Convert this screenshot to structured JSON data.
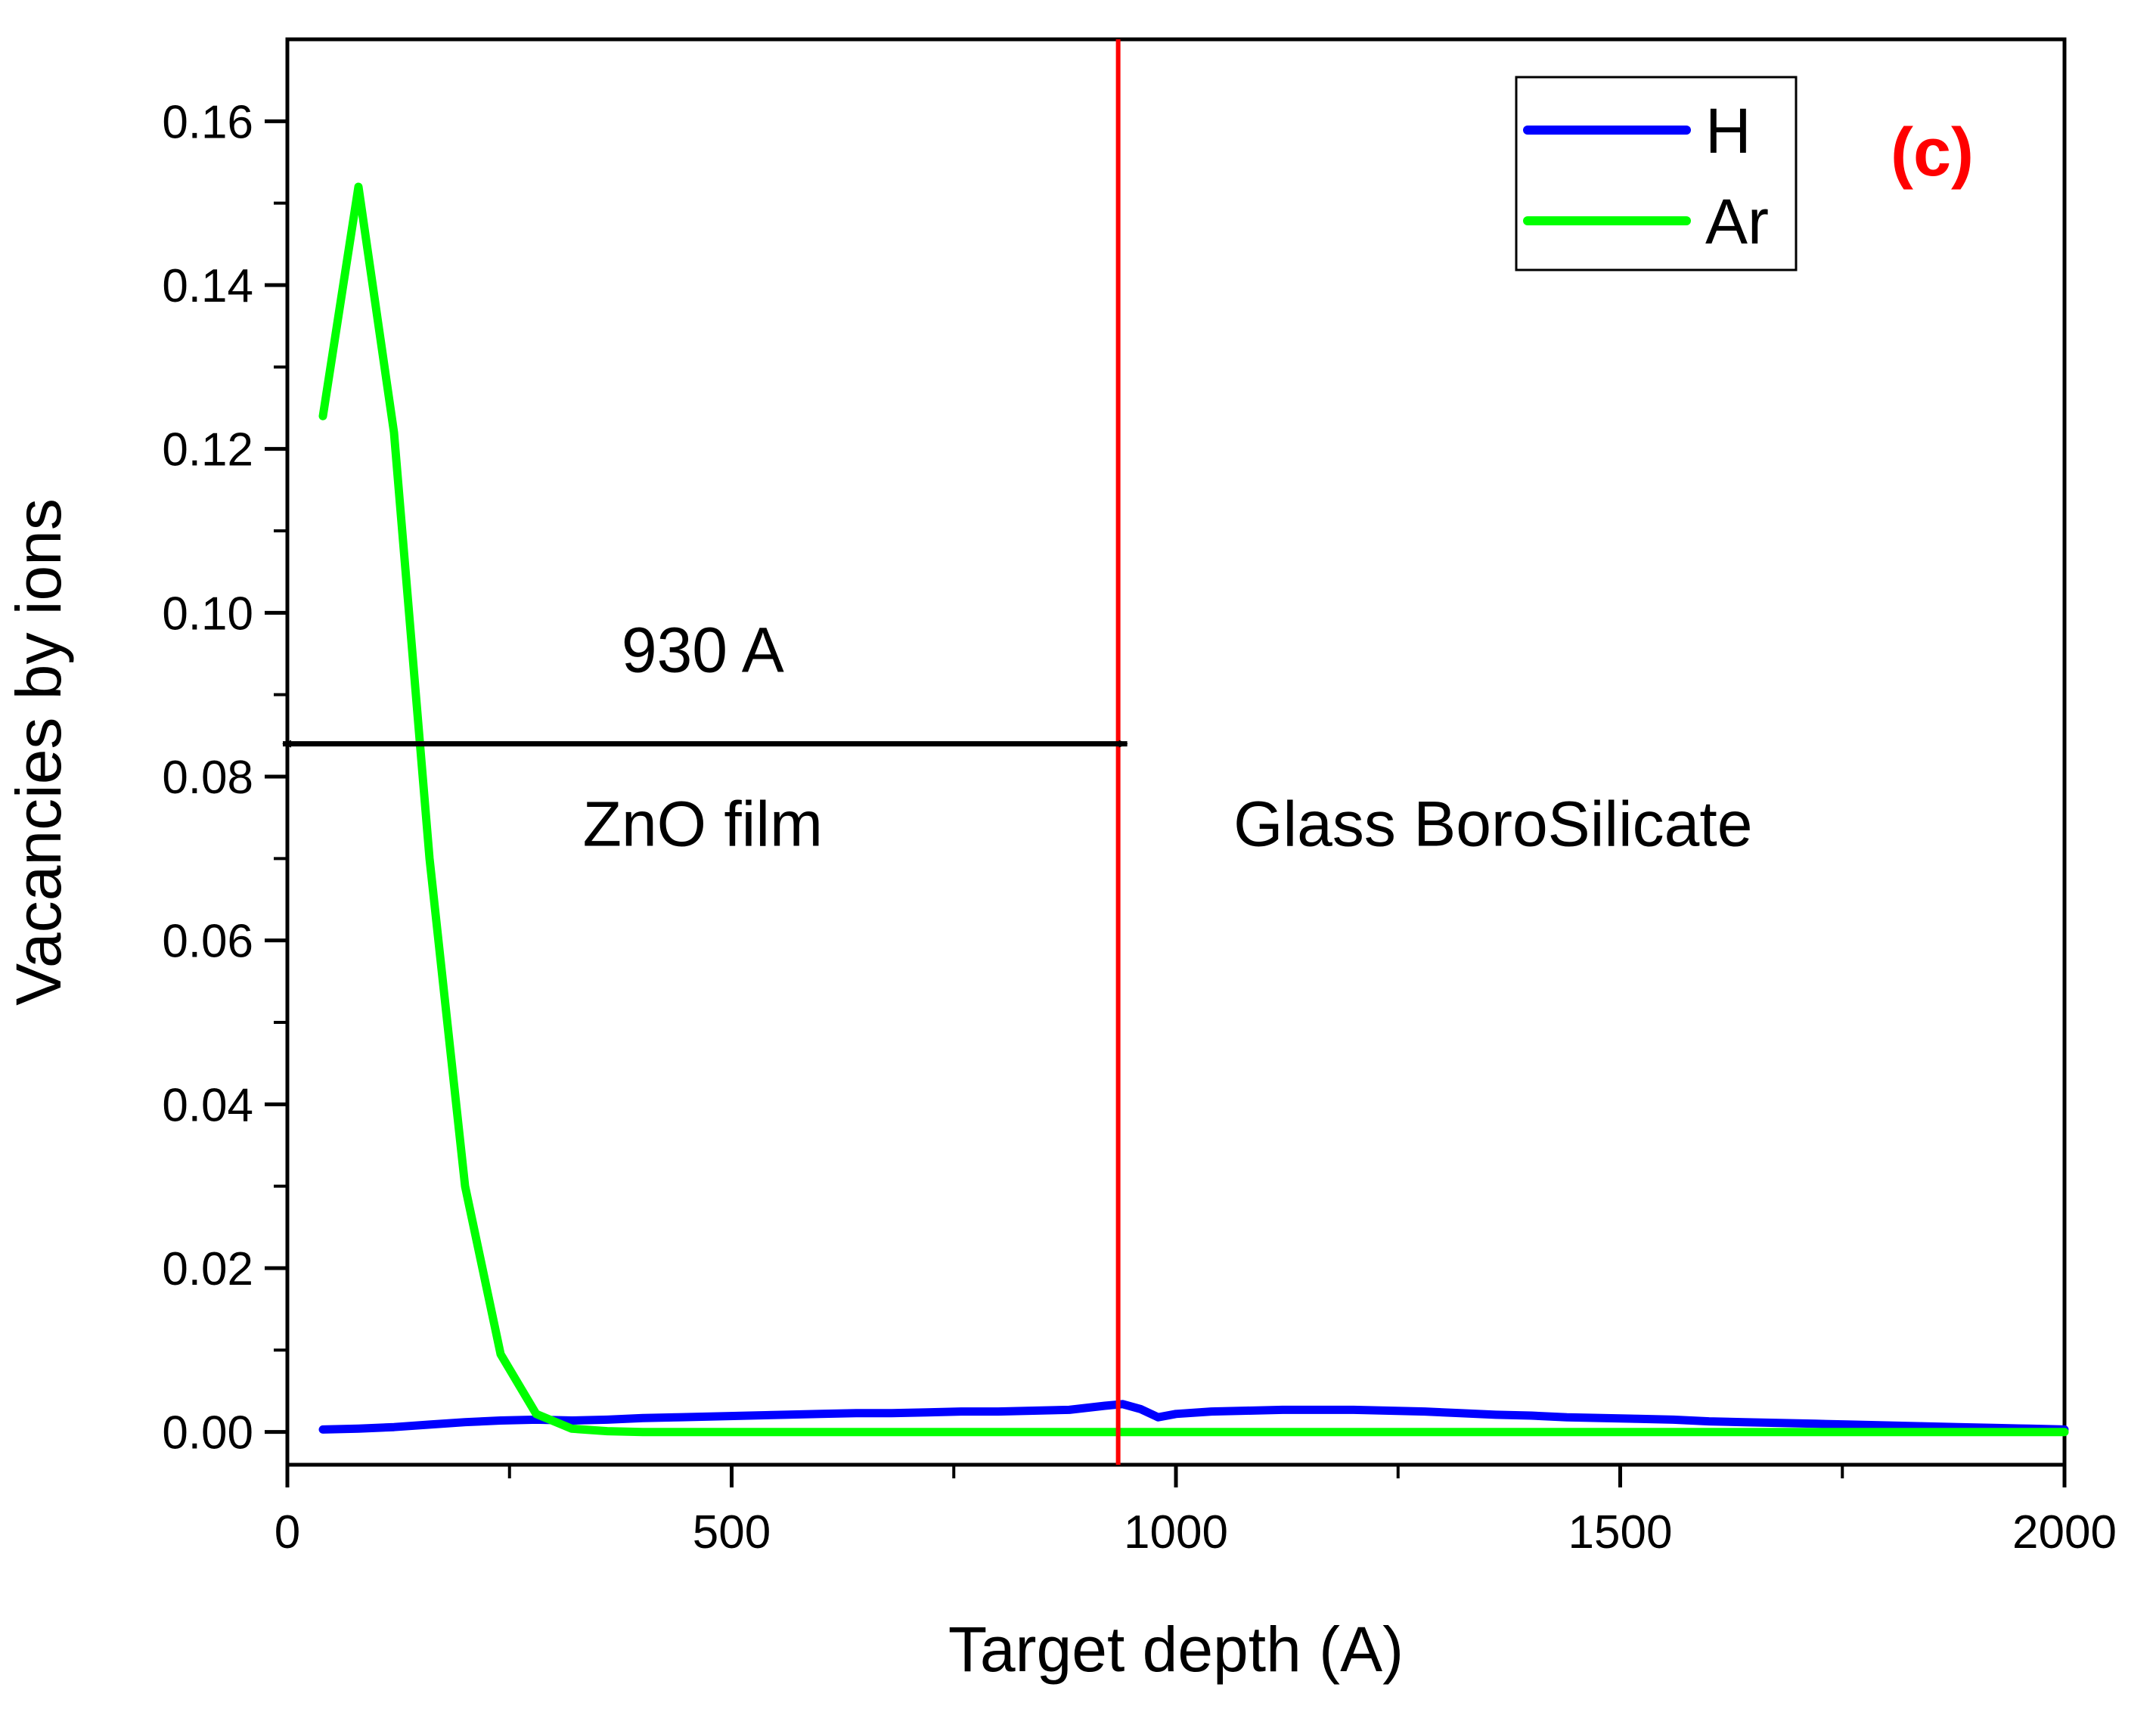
{
  "chart_data": {
    "type": "line",
    "panel_label": "(c)",
    "xlabel": "Target depth (A)",
    "ylabel": "Vacancies by ions",
    "xlim": [
      0,
      2000
    ],
    "ylim": [
      -0.004,
      0.17
    ],
    "x_ticks": [
      0,
      500,
      1000,
      1500,
      2000
    ],
    "y_ticks": [
      0.0,
      0.02,
      0.04,
      0.06,
      0.08,
      0.1,
      0.12,
      0.14,
      0.16
    ],
    "series": [
      {
        "name": "H",
        "color": "#0000ff",
        "x": [
          40,
          80,
          120,
          160,
          200,
          240,
          280,
          320,
          360,
          400,
          440,
          480,
          520,
          560,
          600,
          640,
          680,
          720,
          760,
          800,
          840,
          880,
          920,
          940,
          960,
          980,
          1000,
          1040,
          1080,
          1120,
          1160,
          1200,
          1240,
          1280,
          1320,
          1360,
          1400,
          1440,
          1480,
          1520,
          1560,
          1600,
          1640,
          1680,
          1720,
          1760,
          1800,
          1840,
          1880,
          1920,
          1960,
          2000
        ],
        "values": [
          0.0003,
          0.0004,
          0.0006,
          0.0009,
          0.0012,
          0.0014,
          0.0015,
          0.0014,
          0.0015,
          0.0017,
          0.0018,
          0.0019,
          0.002,
          0.0021,
          0.0022,
          0.0023,
          0.0023,
          0.0024,
          0.0025,
          0.0025,
          0.0026,
          0.0027,
          0.0032,
          0.0034,
          0.0028,
          0.0018,
          0.0022,
          0.0025,
          0.0026,
          0.0027,
          0.0027,
          0.0027,
          0.0026,
          0.0025,
          0.0023,
          0.0021,
          0.002,
          0.0018,
          0.0017,
          0.0016,
          0.0015,
          0.0013,
          0.0012,
          0.0011,
          0.001,
          0.0009,
          0.0008,
          0.0007,
          0.0006,
          0.0005,
          0.0004,
          0.0003
        ]
      },
      {
        "name": "Ar",
        "color": "#00ff00",
        "x": [
          40,
          80,
          120,
          160,
          200,
          240,
          280,
          320,
          360,
          400,
          500,
          600,
          700,
          800,
          900,
          1000,
          1200,
          1400,
          1600,
          1800,
          2000
        ],
        "values": [
          0.124,
          0.152,
          0.122,
          0.07,
          0.03,
          0.0095,
          0.0022,
          0.0004,
          0.0001,
          0.0,
          0.0,
          0.0,
          0.0,
          0.0,
          0.0,
          0.0,
          0.0,
          0.0,
          0.0,
          0.0,
          0.0
        ]
      }
    ],
    "interface_line": {
      "x": 935,
      "color": "#ff0000"
    },
    "annotations": {
      "thickness_label": "930 A",
      "arrow_from": 0,
      "arrow_to": 935,
      "arrow_y": 0.084,
      "film_label": "ZnO film",
      "substrate_label": "Glass BoroSilicate"
    },
    "legend_position": "top-right",
    "panel_label_color": "#ff0000"
  }
}
